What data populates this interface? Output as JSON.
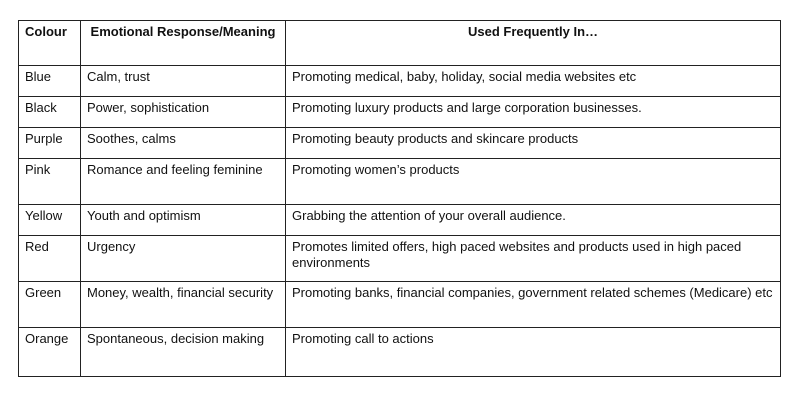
{
  "table": {
    "header": [
      "Colour",
      "Emotional Response/Meaning",
      "Used Frequently In…"
    ],
    "rows": [
      [
        "Blue",
        "Calm, trust",
        "Promoting medical, baby, holiday, social media websites etc"
      ],
      [
        "Black",
        "Power, sophistication",
        "Promoting luxury products and large corporation businesses."
      ],
      [
        "Purple",
        "Soothes, calms",
        "Promoting beauty products and skincare products"
      ],
      [
        "Pink",
        "Romance and feeling feminine",
        "Promoting women’s products"
      ],
      [
        "Yellow",
        "Youth and optimism",
        "Grabbing the attention of your overall audience."
      ],
      [
        "Red",
        "Urgency",
        "Promotes limited offers, high paced websites and products used in high paced environments"
      ],
      [
        "Green",
        "Money, wealth, financial security",
        "Promoting banks, financial companies, government related schemes (Medicare) etc"
      ],
      [
        "Orange",
        "Spontaneous, decision making",
        "Promoting call to actions"
      ]
    ]
  }
}
